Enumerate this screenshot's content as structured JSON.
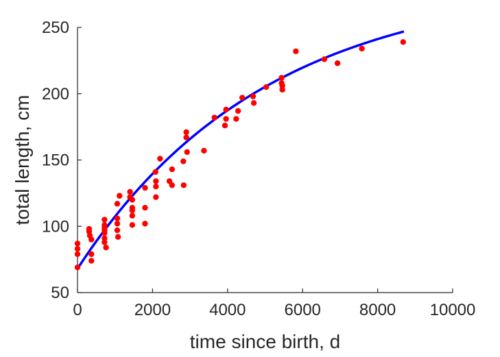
{
  "chart_data": {
    "type": "scatter",
    "title": "",
    "xlabel": "time since birth, d",
    "ylabel": "total length, cm",
    "xlim": [
      0,
      10000
    ],
    "ylim": [
      50,
      250
    ],
    "xticks": [
      0,
      2000,
      4000,
      6000,
      8000,
      10000
    ],
    "yticks": [
      50,
      100,
      150,
      200,
      250
    ],
    "xtick_labels": [
      "0",
      "2000",
      "4000",
      "6000",
      "8000",
      "10000"
    ],
    "ytick_labels": [
      "50",
      "100",
      "150",
      "200",
      "250"
    ],
    "grid": false,
    "legend": "none",
    "colors": {
      "points": "#ff0000",
      "fit": "#0000ff",
      "axes": "#262626"
    },
    "series": [
      {
        "kind": "scatter",
        "points": [
          [
            0,
            87
          ],
          [
            0,
            83
          ],
          [
            0,
            79
          ],
          [
            0,
            69
          ],
          [
            310,
            98
          ],
          [
            310,
            96
          ],
          [
            330,
            93
          ],
          [
            370,
            90
          ],
          [
            370,
            79
          ],
          [
            370,
            74
          ],
          [
            720,
            105
          ],
          [
            720,
            101
          ],
          [
            720,
            99
          ],
          [
            720,
            97
          ],
          [
            720,
            95
          ],
          [
            720,
            91
          ],
          [
            720,
            88
          ],
          [
            760,
            84
          ],
          [
            1060,
            117
          ],
          [
            1060,
            106
          ],
          [
            1060,
            102
          ],
          [
            1060,
            97
          ],
          [
            1080,
            92
          ],
          [
            1120,
            123
          ],
          [
            1400,
            126
          ],
          [
            1400,
            122
          ],
          [
            1460,
            120
          ],
          [
            1460,
            114
          ],
          [
            1460,
            112
          ],
          [
            1460,
            108
          ],
          [
            1460,
            101
          ],
          [
            1800,
            129
          ],
          [
            1800,
            114
          ],
          [
            1800,
            102
          ],
          [
            2080,
            141
          ],
          [
            2090,
            134
          ],
          [
            2090,
            130
          ],
          [
            2090,
            122
          ],
          [
            2200,
            151
          ],
          [
            2450,
            134
          ],
          [
            2520,
            143
          ],
          [
            2520,
            131
          ],
          [
            2820,
            149
          ],
          [
            2830,
            131
          ],
          [
            2900,
            171
          ],
          [
            2900,
            167
          ],
          [
            2920,
            156
          ],
          [
            3370,
            157
          ],
          [
            3650,
            182
          ],
          [
            3930,
            176
          ],
          [
            3960,
            188
          ],
          [
            3960,
            181
          ],
          [
            4230,
            181
          ],
          [
            4280,
            187
          ],
          [
            4390,
            197
          ],
          [
            4680,
            198
          ],
          [
            4700,
            193
          ],
          [
            5030,
            205
          ],
          [
            5440,
            212
          ],
          [
            5440,
            208
          ],
          [
            5460,
            206
          ],
          [
            5460,
            203
          ],
          [
            5820,
            232
          ],
          [
            6580,
            226
          ],
          [
            6930,
            223
          ],
          [
            7580,
            234
          ],
          [
            8680,
            239
          ]
        ]
      },
      {
        "kind": "line",
        "fit": {
          "Linf": 285,
          "L0": 68,
          "k": 0.0002
        },
        "x_range": [
          0,
          8700
        ]
      }
    ]
  }
}
